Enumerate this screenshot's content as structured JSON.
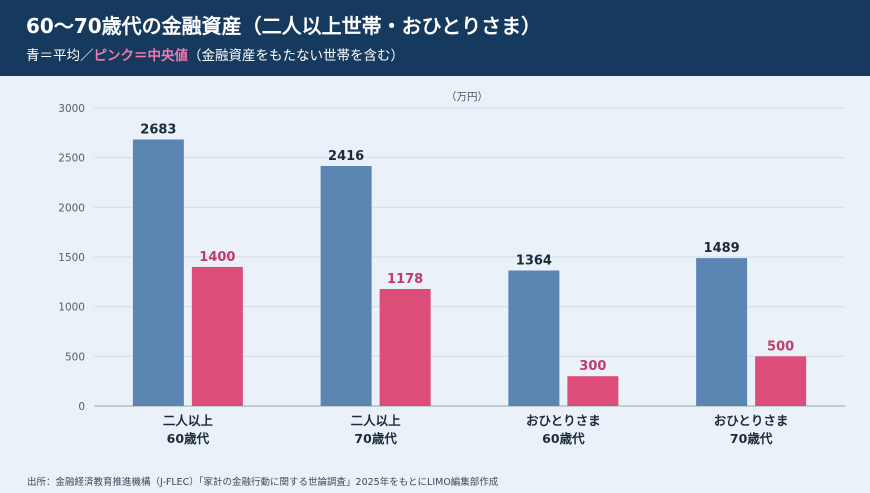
{
  "header": {
    "title": "60〜70歳代の金融資産（二人以上世帯・おひとりさま）",
    "subtitle_blue": "青＝平均／",
    "subtitle_pink": "ピンク＝中央値",
    "subtitle_note": "（金融資産をもたない世帯を含む）"
  },
  "chart_data": {
    "type": "bar",
    "unit_label": "（万円）",
    "categories": [
      [
        "二人以上",
        "60歳代"
      ],
      [
        "二人以上",
        "70歳代"
      ],
      [
        "おひとりさま",
        "60歳代"
      ],
      [
        "おひとりさま",
        "70歳代"
      ]
    ],
    "series": [
      {
        "values": [
          2683,
          2416,
          1364,
          1489
        ],
        "color": "#5b86b3",
        "label_color": "#1c2b3a"
      },
      {
        "values": [
          1400,
          1178,
          300,
          500
        ],
        "color": "#dc4d79",
        "label_color": "#c23a68"
      }
    ],
    "ylim": [
      0,
      3000
    ],
    "yticks": [
      0,
      500,
      1000,
      1500,
      2000,
      2500,
      3000
    ],
    "grid": true
  },
  "footer": {
    "source": "出所：金融経済教育推進機構（J-FLEC）「家計の金融行動に関する世論調査」2025年をもとにLIMO編集部作成"
  }
}
